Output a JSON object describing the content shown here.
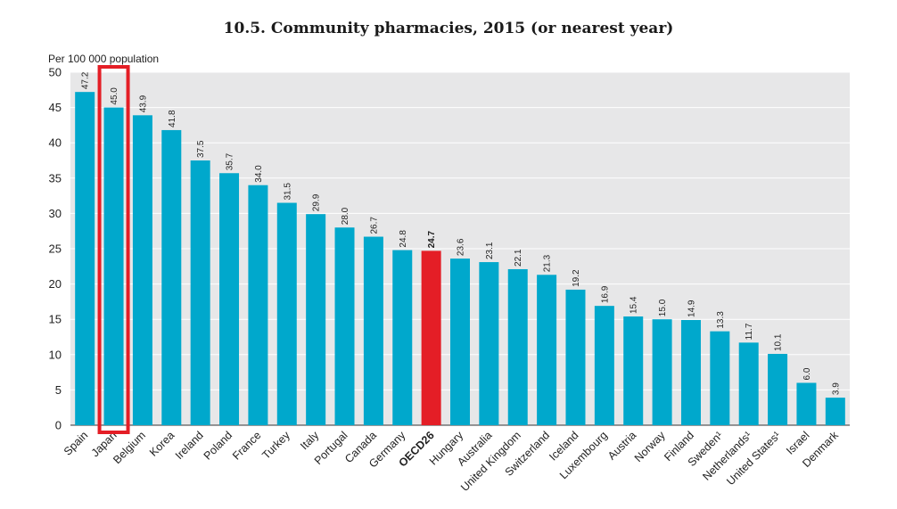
{
  "chart_data": {
    "type": "bar",
    "title": "10.5. Community pharmacies, 2015 (or nearest year)",
    "ylabel": "Per 100 000 population",
    "xlabel": "",
    "ylim": [
      0,
      50
    ],
    "yticks": [
      0,
      5,
      10,
      15,
      20,
      25,
      30,
      35,
      40,
      45,
      50
    ],
    "grid": true,
    "categories": [
      "Spain",
      "Japan",
      "Belgium",
      "Korea",
      "Ireland",
      "Poland",
      "France",
      "Turkey",
      "Italy",
      "Portugal",
      "Canada",
      "Germany",
      "OECD26",
      "Hungary",
      "Australia",
      "United Kingdom",
      "Switzerland",
      "Iceland",
      "Luxembourg",
      "Austria",
      "Norway",
      "Finland",
      "Sweden¹",
      "Netherlands¹",
      "United States¹",
      "Israel",
      "Denmark"
    ],
    "values": [
      47.2,
      45.0,
      43.9,
      41.8,
      37.5,
      35.7,
      34.0,
      31.5,
      29.9,
      28.0,
      26.7,
      24.8,
      24.7,
      23.6,
      23.1,
      22.1,
      21.3,
      19.2,
      16.9,
      15.4,
      15.0,
      14.9,
      13.3,
      11.7,
      10.1,
      6.0,
      3.9
    ],
    "value_labels": [
      "47.2",
      "45.0",
      "43.9",
      "41.8",
      "37.5",
      "35.7",
      "34.0",
      "31.5",
      "29.9",
      "28.0",
      "26.7",
      "24.8",
      "24.7",
      "23.6",
      "23.1",
      "22.1",
      "21.3",
      "19.2",
      "16.9",
      "15.4",
      "15.0",
      "14.9",
      "13.3",
      "11.7",
      "10.1",
      "6.0",
      "3.9"
    ],
    "highlight_category": "OECD26",
    "outlined_category": "Japan",
    "colors": {
      "bar": "#00A8CC",
      "highlight_bar": "#E41E26",
      "outline": "#E41E26",
      "plot_background": "#E7E7E8",
      "grid": "#ffffff"
    }
  }
}
